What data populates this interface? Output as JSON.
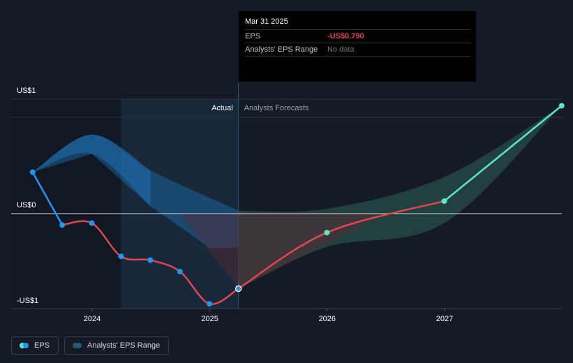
{
  "tooltip": {
    "date": "Mar 31 2025",
    "rows": [
      {
        "label": "EPS",
        "value": "-US$0.790"
      },
      {
        "label": "Analysts' EPS Range",
        "value": "No data"
      }
    ]
  },
  "legend": {
    "eps_label": "EPS",
    "range_label": "Analysts' EPS Range"
  },
  "colors": {
    "background": "#151b26",
    "eps_positive": "#2196f3",
    "eps_negative": "#e0474c",
    "forecast_positive": "#5ee6c9",
    "range_past": "#1f6fb0",
    "range_forecast": "#2d5a52"
  },
  "chart_data": {
    "type": "line",
    "y_tick_labels": [
      "US$1",
      "US$0",
      "-US$1"
    ],
    "x_tick_labels": [
      "2024",
      "2025",
      "2026",
      "2027"
    ],
    "section_labels": {
      "actual": "Actual",
      "forecast": "Analysts Forecasts"
    },
    "ylim": [
      -1.0,
      1.0
    ],
    "xlim": [
      "2023-06-30",
      "2027-12-31"
    ],
    "grid": false,
    "legend_position": "bottom-left",
    "series": [
      {
        "name": "EPS",
        "points": [
          [
            "2023-06-30",
            0.43
          ],
          [
            "2023-09-30",
            -0.12
          ],
          [
            "2023-12-31",
            -0.1
          ],
          [
            "2024-03-31",
            -0.45
          ],
          [
            "2024-06-30",
            -0.49
          ],
          [
            "2024-09-30",
            -0.61
          ],
          [
            "2024-12-31",
            -0.95
          ],
          [
            "2025-03-31",
            -0.79
          ]
        ]
      },
      {
        "name": "EPS forecast",
        "points": [
          [
            "2025-03-31",
            -0.79
          ],
          [
            "2025-12-31",
            -0.2
          ],
          [
            "2026-12-31",
            0.13
          ],
          [
            "2027-12-31",
            1.12
          ]
        ]
      },
      {
        "name": "Analysts' EPS Range",
        "upper": [
          [
            "2023-06-30",
            0.43
          ],
          [
            "2023-12-31",
            0.82
          ],
          [
            "2024-06-30",
            0.45
          ],
          [
            "2025-03-31",
            0.03
          ],
          [
            "2025-12-31",
            0.05
          ],
          [
            "2026-12-31",
            0.38
          ],
          [
            "2027-12-31",
            1.12
          ]
        ],
        "lower": [
          [
            "2023-06-30",
            0.43
          ],
          [
            "2023-12-31",
            0.62
          ],
          [
            "2024-06-30",
            0.08
          ],
          [
            "2024-12-31",
            -0.36
          ],
          [
            "2025-03-31",
            -0.36
          ],
          [
            "2025-03-31",
            -0.79
          ],
          [
            "2025-12-31",
            -0.35
          ],
          [
            "2026-12-31",
            -0.1
          ],
          [
            "2027-12-31",
            1.12
          ]
        ]
      }
    ]
  }
}
